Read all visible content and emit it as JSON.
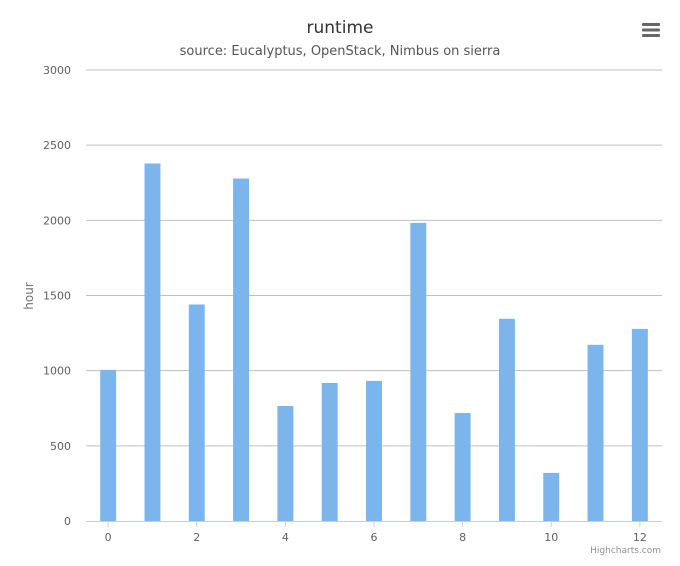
{
  "chart_data": {
    "type": "bar",
    "title": "runtime",
    "subtitle": "source: Eucalyptus, OpenStack, Nimbus on sierra",
    "xlabel": "",
    "ylabel": "hour",
    "x": [
      0,
      1,
      2,
      3,
      4,
      5,
      6,
      7,
      8,
      9,
      10,
      11,
      12
    ],
    "values": [
      1005,
      2378,
      1440,
      2278,
      765,
      918,
      932,
      1983,
      718,
      1345,
      320,
      1172,
      1278
    ],
    "x_ticks": [
      "0",
      "2",
      "4",
      "6",
      "8",
      "10",
      "12"
    ],
    "y_ticks": [
      "0",
      "500",
      "1000",
      "1500",
      "2000",
      "2500",
      "3000"
    ],
    "ylim": [
      0,
      3000
    ],
    "xlim": [
      -0.5,
      12.5
    ],
    "grid": true,
    "legend": "none",
    "bar_color": "#7cb5ec",
    "grid_color": "#c0c0c0",
    "credits": "Highcharts.com"
  },
  "toolbar": {
    "menu_icon": "hamburger-menu-icon"
  }
}
